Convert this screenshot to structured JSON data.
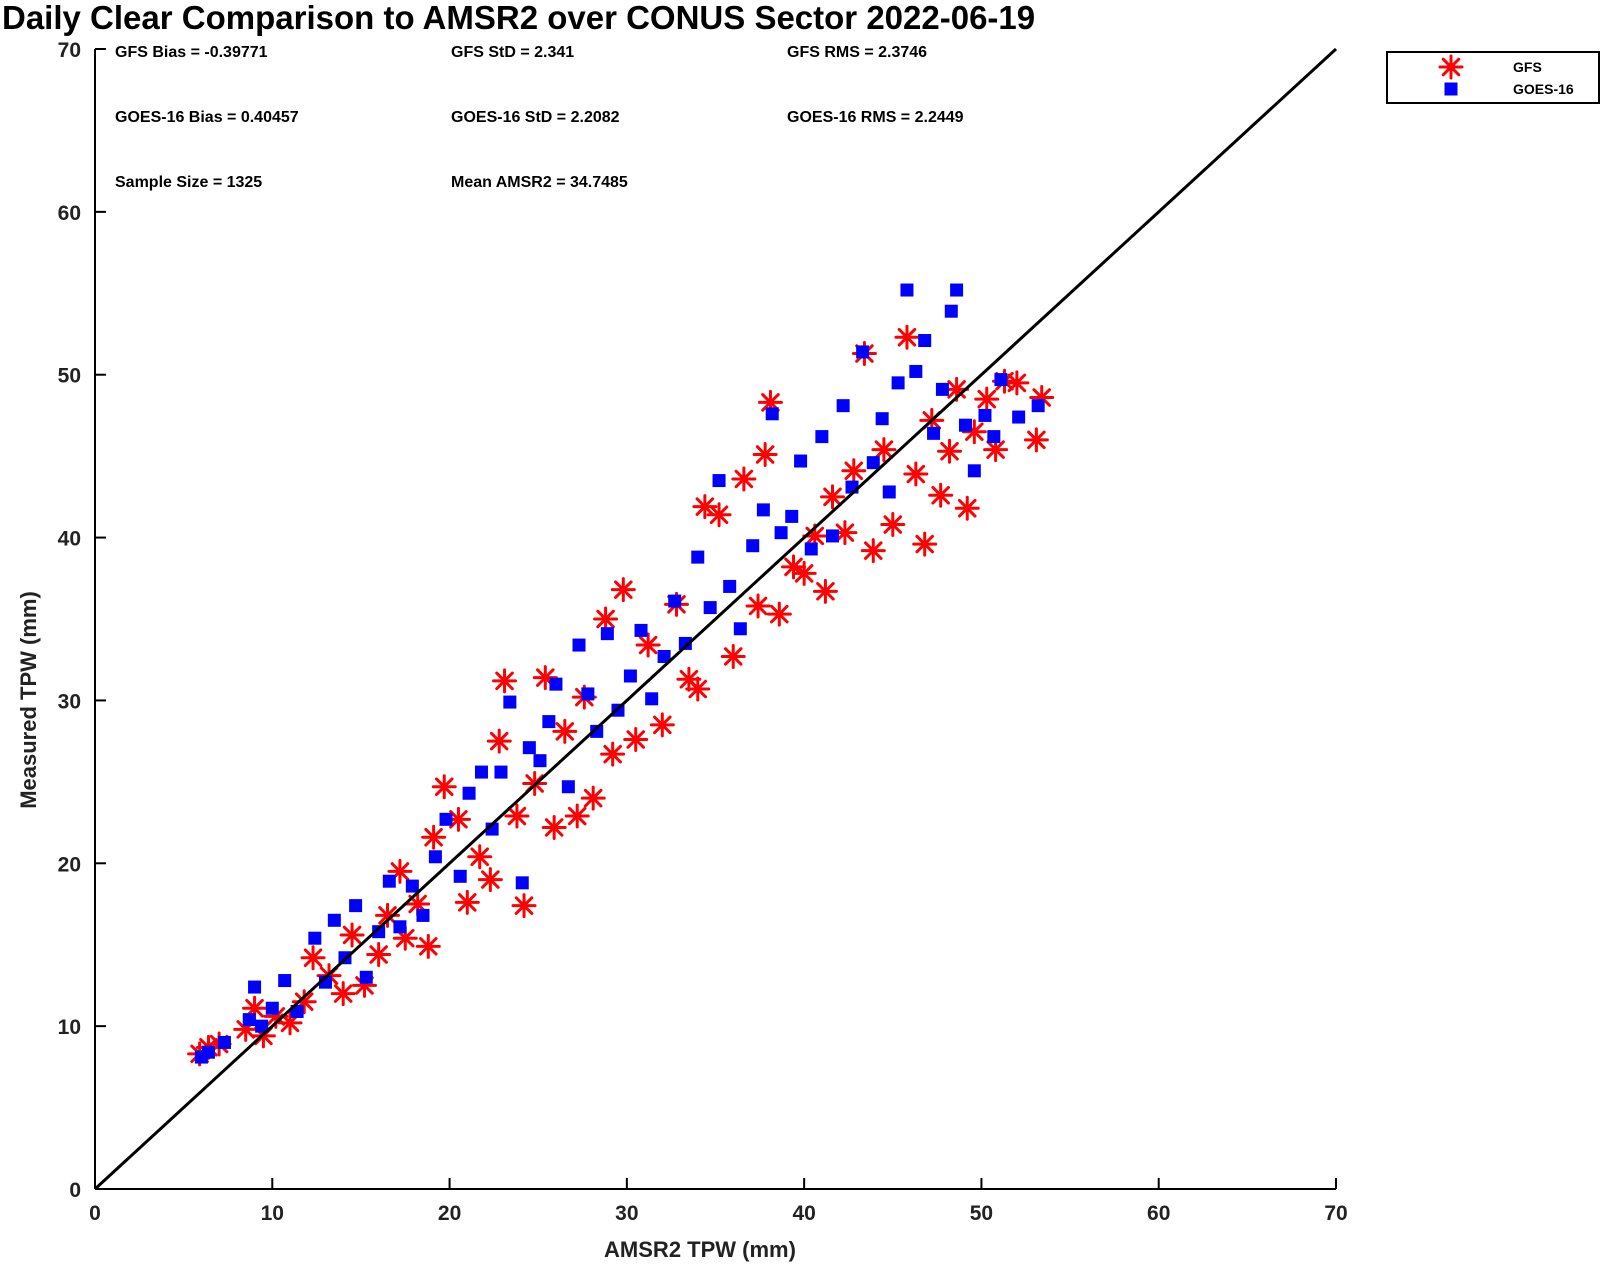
{
  "chart_data": {
    "type": "scatter",
    "title": "Daily Clear Comparison to AMSR2 over CONUS Sector 2022-06-19",
    "xlabel": "AMSR2 TPW (mm)",
    "ylabel": "Measured TPW (mm)",
    "xlim": [
      0,
      70
    ],
    "ylim": [
      0,
      70
    ],
    "xticks": [
      "0",
      "10",
      "20",
      "30",
      "40",
      "50",
      "60",
      "70"
    ],
    "yticks": [
      "0",
      "10",
      "20",
      "30",
      "40",
      "50",
      "60",
      "70"
    ],
    "grid": false,
    "legend_position": "outside top-right",
    "reference_line": {
      "x": [
        0,
        70
      ],
      "y": [
        0,
        70
      ],
      "color": "#000000"
    },
    "stats": [
      [
        "GFS Bias = -0.39771",
        "GFS StD = 2.341",
        "GFS RMS = 2.3746"
      ],
      [
        "GOES-16 Bias = 0.40457",
        "GOES-16 StD = 2.2082",
        "GOES-16 RMS = 2.2449"
      ],
      [
        "Sample Size = 1325",
        "Mean AMSR2 = 34.7485"
      ]
    ],
    "series": [
      {
        "name": "GFS",
        "marker": "asterisk",
        "color": "#ff0000",
        "points": [
          [
            5.9,
            8.3
          ],
          [
            6.4,
            8.7
          ],
          [
            7,
            8.9
          ],
          [
            8.5,
            9.8
          ],
          [
            9,
            11.1
          ],
          [
            9.5,
            9.4
          ],
          [
            10.2,
            10.6
          ],
          [
            11,
            10.2
          ],
          [
            11.8,
            11.5
          ],
          [
            12.3,
            14.2
          ],
          [
            13.2,
            13.1
          ],
          [
            14,
            12
          ],
          [
            14.5,
            15.6
          ],
          [
            15.2,
            12.5
          ],
          [
            16,
            14.4
          ],
          [
            16.5,
            16.8
          ],
          [
            17.2,
            19.5
          ],
          [
            17.5,
            15.4
          ],
          [
            18.2,
            17.5
          ],
          [
            18.8,
            14.9
          ],
          [
            19.1,
            21.6
          ],
          [
            19.7,
            24.7
          ],
          [
            20.5,
            22.7
          ],
          [
            21,
            17.6
          ],
          [
            21.7,
            20.4
          ],
          [
            22.3,
            19
          ],
          [
            22.8,
            27.5
          ],
          [
            23.1,
            31.2
          ],
          [
            23.8,
            22.9
          ],
          [
            24.2,
            17.4
          ],
          [
            24.8,
            24.9
          ],
          [
            25.4,
            31.4
          ],
          [
            25.9,
            22.2
          ],
          [
            26.5,
            28.1
          ],
          [
            27.2,
            22.9
          ],
          [
            27.6,
            30.2
          ],
          [
            28.1,
            24
          ],
          [
            28.8,
            35
          ],
          [
            29.2,
            26.7
          ],
          [
            29.8,
            36.8
          ],
          [
            30.5,
            27.6
          ],
          [
            31.2,
            33.4
          ],
          [
            32,
            28.5
          ],
          [
            32.8,
            35.9
          ],
          [
            33.5,
            31.3
          ],
          [
            34,
            30.7
          ],
          [
            34.4,
            41.9
          ],
          [
            35.2,
            41.4
          ],
          [
            36,
            32.7
          ],
          [
            36.6,
            43.6
          ],
          [
            37.4,
            35.8
          ],
          [
            37.8,
            45.1
          ],
          [
            38.1,
            48.3
          ],
          [
            38.6,
            35.3
          ],
          [
            39.4,
            38.2
          ],
          [
            40,
            37.8
          ],
          [
            40.6,
            40.1
          ],
          [
            41.2,
            36.7
          ],
          [
            41.6,
            42.5
          ],
          [
            42.3,
            40.3
          ],
          [
            42.8,
            44.1
          ],
          [
            43.4,
            51.3
          ],
          [
            43.9,
            39.2
          ],
          [
            44.5,
            45.4
          ],
          [
            45,
            40.8
          ],
          [
            45.8,
            52.3
          ],
          [
            46.3,
            43.9
          ],
          [
            46.8,
            39.6
          ],
          [
            47.2,
            47.2
          ],
          [
            47.7,
            42.6
          ],
          [
            48.2,
            45.3
          ],
          [
            48.6,
            49.1
          ],
          [
            49.2,
            41.8
          ],
          [
            49.6,
            46.5
          ],
          [
            50.3,
            48.5
          ],
          [
            50.8,
            45.4
          ],
          [
            51.3,
            49.6
          ],
          [
            52,
            49.5
          ],
          [
            53.1,
            46
          ],
          [
            53.4,
            48.6
          ]
        ]
      },
      {
        "name": "GOES-16",
        "marker": "square",
        "color": "#0000ff",
        "points": [
          [
            6,
            8.1
          ],
          [
            6.4,
            8.4
          ],
          [
            7.3,
            9
          ],
          [
            8.7,
            10.4
          ],
          [
            9,
            12.4
          ],
          [
            9.4,
            10
          ],
          [
            10,
            11.1
          ],
          [
            10.7,
            12.8
          ],
          [
            11.4,
            10.9
          ],
          [
            12.4,
            15.4
          ],
          [
            13,
            12.7
          ],
          [
            13.5,
            16.5
          ],
          [
            14.1,
            14.2
          ],
          [
            14.7,
            17.4
          ],
          [
            15.3,
            13
          ],
          [
            16,
            15.8
          ],
          [
            16.6,
            18.9
          ],
          [
            17.2,
            16.1
          ],
          [
            17.9,
            18.6
          ],
          [
            18.5,
            16.8
          ],
          [
            19.2,
            20.4
          ],
          [
            19.8,
            22.7
          ],
          [
            20.6,
            19.2
          ],
          [
            21.1,
            24.3
          ],
          [
            21.8,
            25.6
          ],
          [
            22.4,
            22.1
          ],
          [
            22.9,
            25.6
          ],
          [
            23.4,
            29.9
          ],
          [
            24.1,
            18.8
          ],
          [
            24.5,
            27.1
          ],
          [
            25.1,
            26.3
          ],
          [
            25.6,
            28.7
          ],
          [
            26,
            31
          ],
          [
            26.7,
            24.7
          ],
          [
            27.3,
            33.4
          ],
          [
            27.8,
            30.4
          ],
          [
            28.3,
            28.1
          ],
          [
            28.9,
            34.1
          ],
          [
            29.5,
            29.4
          ],
          [
            30.2,
            31.5
          ],
          [
            30.8,
            34.3
          ],
          [
            31.4,
            30.1
          ],
          [
            32.1,
            32.7
          ],
          [
            32.7,
            36.1
          ],
          [
            33.3,
            33.5
          ],
          [
            34,
            38.8
          ],
          [
            34.7,
            35.7
          ],
          [
            35.2,
            43.5
          ],
          [
            35.8,
            37
          ],
          [
            36.4,
            34.4
          ],
          [
            37.1,
            39.5
          ],
          [
            37.7,
            41.7
          ],
          [
            38.2,
            47.6
          ],
          [
            38.7,
            40.3
          ],
          [
            39.3,
            41.3
          ],
          [
            39.8,
            44.7
          ],
          [
            40.4,
            39.3
          ],
          [
            41,
            46.2
          ],
          [
            41.6,
            40.1
          ],
          [
            42.2,
            48.1
          ],
          [
            42.7,
            43.1
          ],
          [
            43.3,
            51.4
          ],
          [
            43.9,
            44.6
          ],
          [
            44.4,
            47.3
          ],
          [
            44.8,
            42.8
          ],
          [
            45.3,
            49.5
          ],
          [
            45.8,
            55.2
          ],
          [
            46.3,
            50.2
          ],
          [
            46.8,
            52.1
          ],
          [
            47.3,
            46.4
          ],
          [
            47.8,
            49.1
          ],
          [
            48.3,
            53.9
          ],
          [
            48.6,
            55.2
          ],
          [
            49.1,
            46.9
          ],
          [
            49.6,
            44.1
          ],
          [
            50.2,
            47.5
          ],
          [
            50.7,
            46.2
          ],
          [
            51.1,
            49.7
          ],
          [
            52.1,
            47.4
          ],
          [
            53.2,
            48.1
          ]
        ]
      }
    ]
  }
}
